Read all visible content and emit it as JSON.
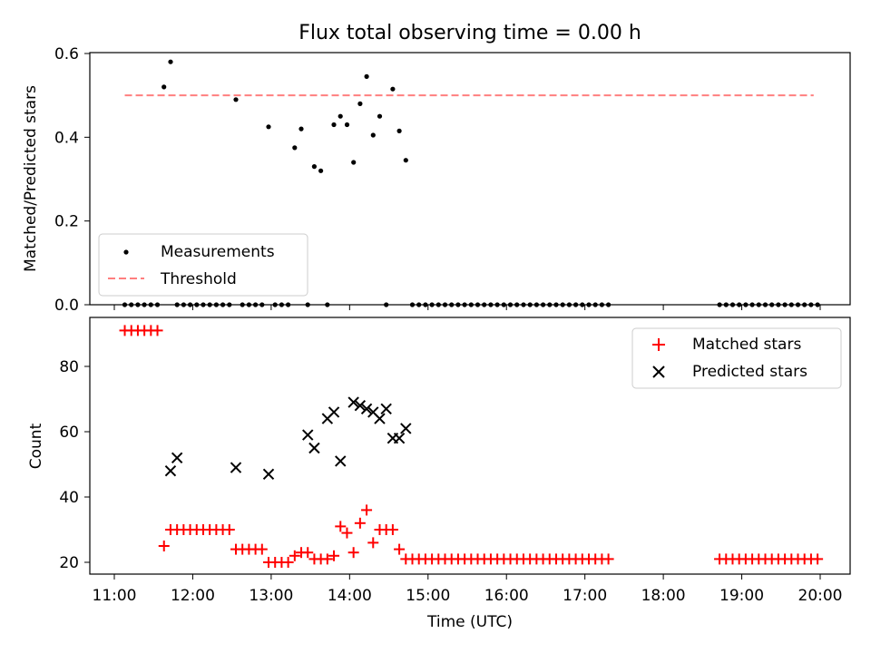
{
  "chart_data": [
    {
      "type": "scatter",
      "title": "Flux total observing time = 0.00 h",
      "ylabel": "Matched/Predicted stars",
      "xlim": [
        "11:00",
        "20:00"
      ],
      "ylim": [
        0,
        0.6
      ],
      "yticks": [
        "0.0",
        "0.2",
        "0.4",
        "0.6"
      ],
      "legend_position": "lower-left",
      "threshold": {
        "name": "Threshold",
        "value": 0.5,
        "x_range": [
          "11:08",
          "19:55"
        ],
        "color": "#ff7f7f",
        "style": "dashed"
      },
      "series": [
        {
          "name": "Measurements",
          "color": "#000000",
          "marker": "dot",
          "x": [
            "11:08",
            "11:13",
            "11:18",
            "11:23",
            "11:28",
            "11:33",
            "11:38",
            "11:43",
            "11:48",
            "11:53",
            "11:58",
            "12:03",
            "12:08",
            "12:13",
            "12:18",
            "12:23",
            "12:28",
            "12:33",
            "12:38",
            "12:43",
            "12:48",
            "12:53",
            "12:58",
            "13:03",
            "13:08",
            "13:13",
            "13:18",
            "13:23",
            "13:28",
            "13:33",
            "13:38",
            "13:43",
            "13:48",
            "13:53",
            "13:58",
            "14:03",
            "14:08",
            "14:13",
            "14:18",
            "14:23",
            "14:28",
            "14:33",
            "14:38",
            "14:43",
            "14:48",
            "14:53",
            "14:58",
            "15:03",
            "15:08",
            "15:13",
            "15:18",
            "15:23",
            "15:28",
            "15:33",
            "15:38",
            "15:43",
            "15:48",
            "15:53",
            "15:58",
            "16:03",
            "16:08",
            "16:13",
            "16:18",
            "16:23",
            "16:28",
            "16:33",
            "16:38",
            "16:43",
            "16:48",
            "16:53",
            "16:58",
            "17:03",
            "17:08",
            "17:13",
            "17:18",
            "18:43",
            "18:48",
            "18:53",
            "18:58",
            "19:03",
            "19:08",
            "19:13",
            "19:18",
            "19:23",
            "19:28",
            "19:33",
            "19:38",
            "19:43",
            "19:48",
            "19:53",
            "19:58"
          ],
          "y": [
            0,
            0,
            0,
            0,
            0,
            0,
            0.52,
            0.58,
            0,
            0,
            0,
            0,
            0,
            0,
            0,
            0,
            0,
            0.49,
            0,
            0,
            0,
            0,
            0.425,
            0,
            0,
            0,
            0.375,
            0.42,
            0,
            0.33,
            0.32,
            0,
            0.43,
            0.45,
            0.43,
            0.34,
            0.48,
            0.545,
            0.405,
            0.45,
            0,
            0.515,
            0.415,
            0.345,
            0,
            0,
            0,
            0,
            0,
            0,
            0,
            0,
            0,
            0,
            0,
            0,
            0,
            0,
            0,
            0,
            0,
            0,
            0,
            0,
            0,
            0,
            0,
            0,
            0,
            0,
            0,
            0,
            0,
            0,
            0,
            0,
            0,
            0,
            0,
            0,
            0,
            0,
            0,
            0,
            0,
            0,
            0,
            0,
            0,
            0,
            0
          ]
        }
      ]
    },
    {
      "type": "scatter",
      "xlabel": "Time (UTC)",
      "ylabel": "Count",
      "xticks": [
        "11:00",
        "12:00",
        "13:00",
        "14:00",
        "15:00",
        "16:00",
        "17:00",
        "18:00",
        "19:00",
        "20:00"
      ],
      "xlim": [
        "11:00",
        "20:00"
      ],
      "ylim": [
        16,
        95
      ],
      "yticks": [
        "20",
        "40",
        "60",
        "80"
      ],
      "legend_position": "upper-right",
      "series": [
        {
          "name": "Matched stars",
          "color": "#ff0000",
          "marker": "plus",
          "x": [
            "11:08",
            "11:13",
            "11:18",
            "11:23",
            "11:28",
            "11:33",
            "11:38",
            "11:43",
            "11:48",
            "11:53",
            "11:58",
            "12:03",
            "12:08",
            "12:13",
            "12:18",
            "12:23",
            "12:28",
            "12:33",
            "12:38",
            "12:43",
            "12:48",
            "12:53",
            "12:58",
            "13:03",
            "13:08",
            "13:13",
            "13:18",
            "13:23",
            "13:28",
            "13:33",
            "13:38",
            "13:43",
            "13:48",
            "13:53",
            "13:58",
            "14:03",
            "14:08",
            "14:13",
            "14:18",
            "14:23",
            "14:28",
            "14:33",
            "14:38",
            "14:43",
            "14:48",
            "14:53",
            "14:58",
            "15:03",
            "15:08",
            "15:13",
            "15:18",
            "15:23",
            "15:28",
            "15:33",
            "15:38",
            "15:43",
            "15:48",
            "15:53",
            "15:58",
            "16:03",
            "16:08",
            "16:13",
            "16:18",
            "16:23",
            "16:28",
            "16:33",
            "16:38",
            "16:43",
            "16:48",
            "16:53",
            "16:58",
            "17:03",
            "17:08",
            "17:13",
            "17:18",
            "18:43",
            "18:48",
            "18:53",
            "18:58",
            "19:03",
            "19:08",
            "19:13",
            "19:18",
            "19:23",
            "19:28",
            "19:33",
            "19:38",
            "19:43",
            "19:48",
            "19:53",
            "19:58"
          ],
          "y": [
            91,
            91,
            91,
            91,
            91,
            91,
            25,
            30,
            30,
            30,
            30,
            30,
            30,
            30,
            30,
            30,
            30,
            24,
            24,
            24,
            24,
            24,
            20,
            20,
            20,
            20,
            22,
            23,
            23,
            21,
            21,
            21,
            22,
            31,
            29,
            23,
            32,
            36,
            26,
            30,
            30,
            30,
            24,
            21,
            21,
            21,
            21,
            21,
            21,
            21,
            21,
            21,
            21,
            21,
            21,
            21,
            21,
            21,
            21,
            21,
            21,
            21,
            21,
            21,
            21,
            21,
            21,
            21,
            21,
            21,
            21,
            21,
            21,
            21,
            21,
            21,
            21,
            21,
            21,
            21,
            21,
            21,
            21,
            21,
            21,
            21,
            21,
            21,
            21,
            21,
            21
          ]
        },
        {
          "name": "Predicted stars",
          "color": "#000000",
          "marker": "x",
          "x": [
            "11:43",
            "11:48",
            "12:33",
            "12:58",
            "13:28",
            "13:33",
            "13:43",
            "13:48",
            "13:53",
            "14:03",
            "14:08",
            "14:13",
            "14:18",
            "14:23",
            "14:28",
            "14:33",
            "14:38",
            "14:43"
          ],
          "y": [
            48,
            52,
            49,
            47,
            59,
            55,
            64,
            66,
            51,
            69,
            68,
            67,
            66,
            64,
            67,
            58,
            58,
            61
          ]
        }
      ]
    }
  ]
}
